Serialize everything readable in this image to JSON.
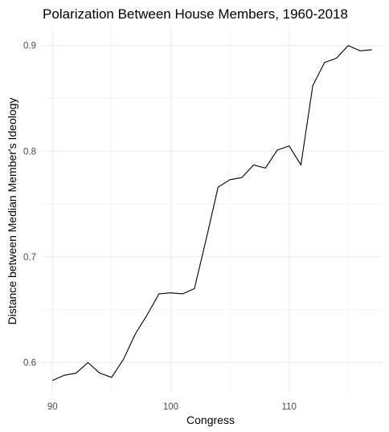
{
  "chart_data": {
    "type": "line",
    "title": "Polarization Between House Members, 1960-2018",
    "xlabel": "Congress",
    "ylabel": "Distance between Median Member's Ideology",
    "xlim": [
      89.1,
      117.9
    ],
    "ylim": [
      0.57,
      0.918
    ],
    "xticks": [
      90,
      100,
      110
    ],
    "yticks": [
      0.6,
      0.7,
      0.8,
      0.9
    ],
    "x_minor_ticks": [
      95,
      105,
      115
    ],
    "y_minor_ticks": [
      0.65,
      0.75,
      0.85
    ],
    "grid": true,
    "line_color": "#000000",
    "grid_color": "#ebebeb",
    "series": [
      {
        "x": [
          90,
          91,
          92,
          93,
          94,
          95,
          96,
          97,
          98,
          99,
          100,
          101,
          102,
          103,
          104,
          105,
          106,
          107,
          108,
          109,
          110,
          111,
          112,
          113,
          114,
          115,
          116,
          117
        ],
        "values": [
          0.583,
          0.588,
          0.59,
          0.6,
          0.59,
          0.586,
          0.603,
          0.627,
          0.645,
          0.665,
          0.666,
          0.665,
          0.67,
          0.717,
          0.766,
          0.773,
          0.775,
          0.787,
          0.784,
          0.801,
          0.805,
          0.787,
          0.862,
          0.884,
          0.888,
          0.9,
          0.895,
          0.896
        ]
      }
    ]
  }
}
